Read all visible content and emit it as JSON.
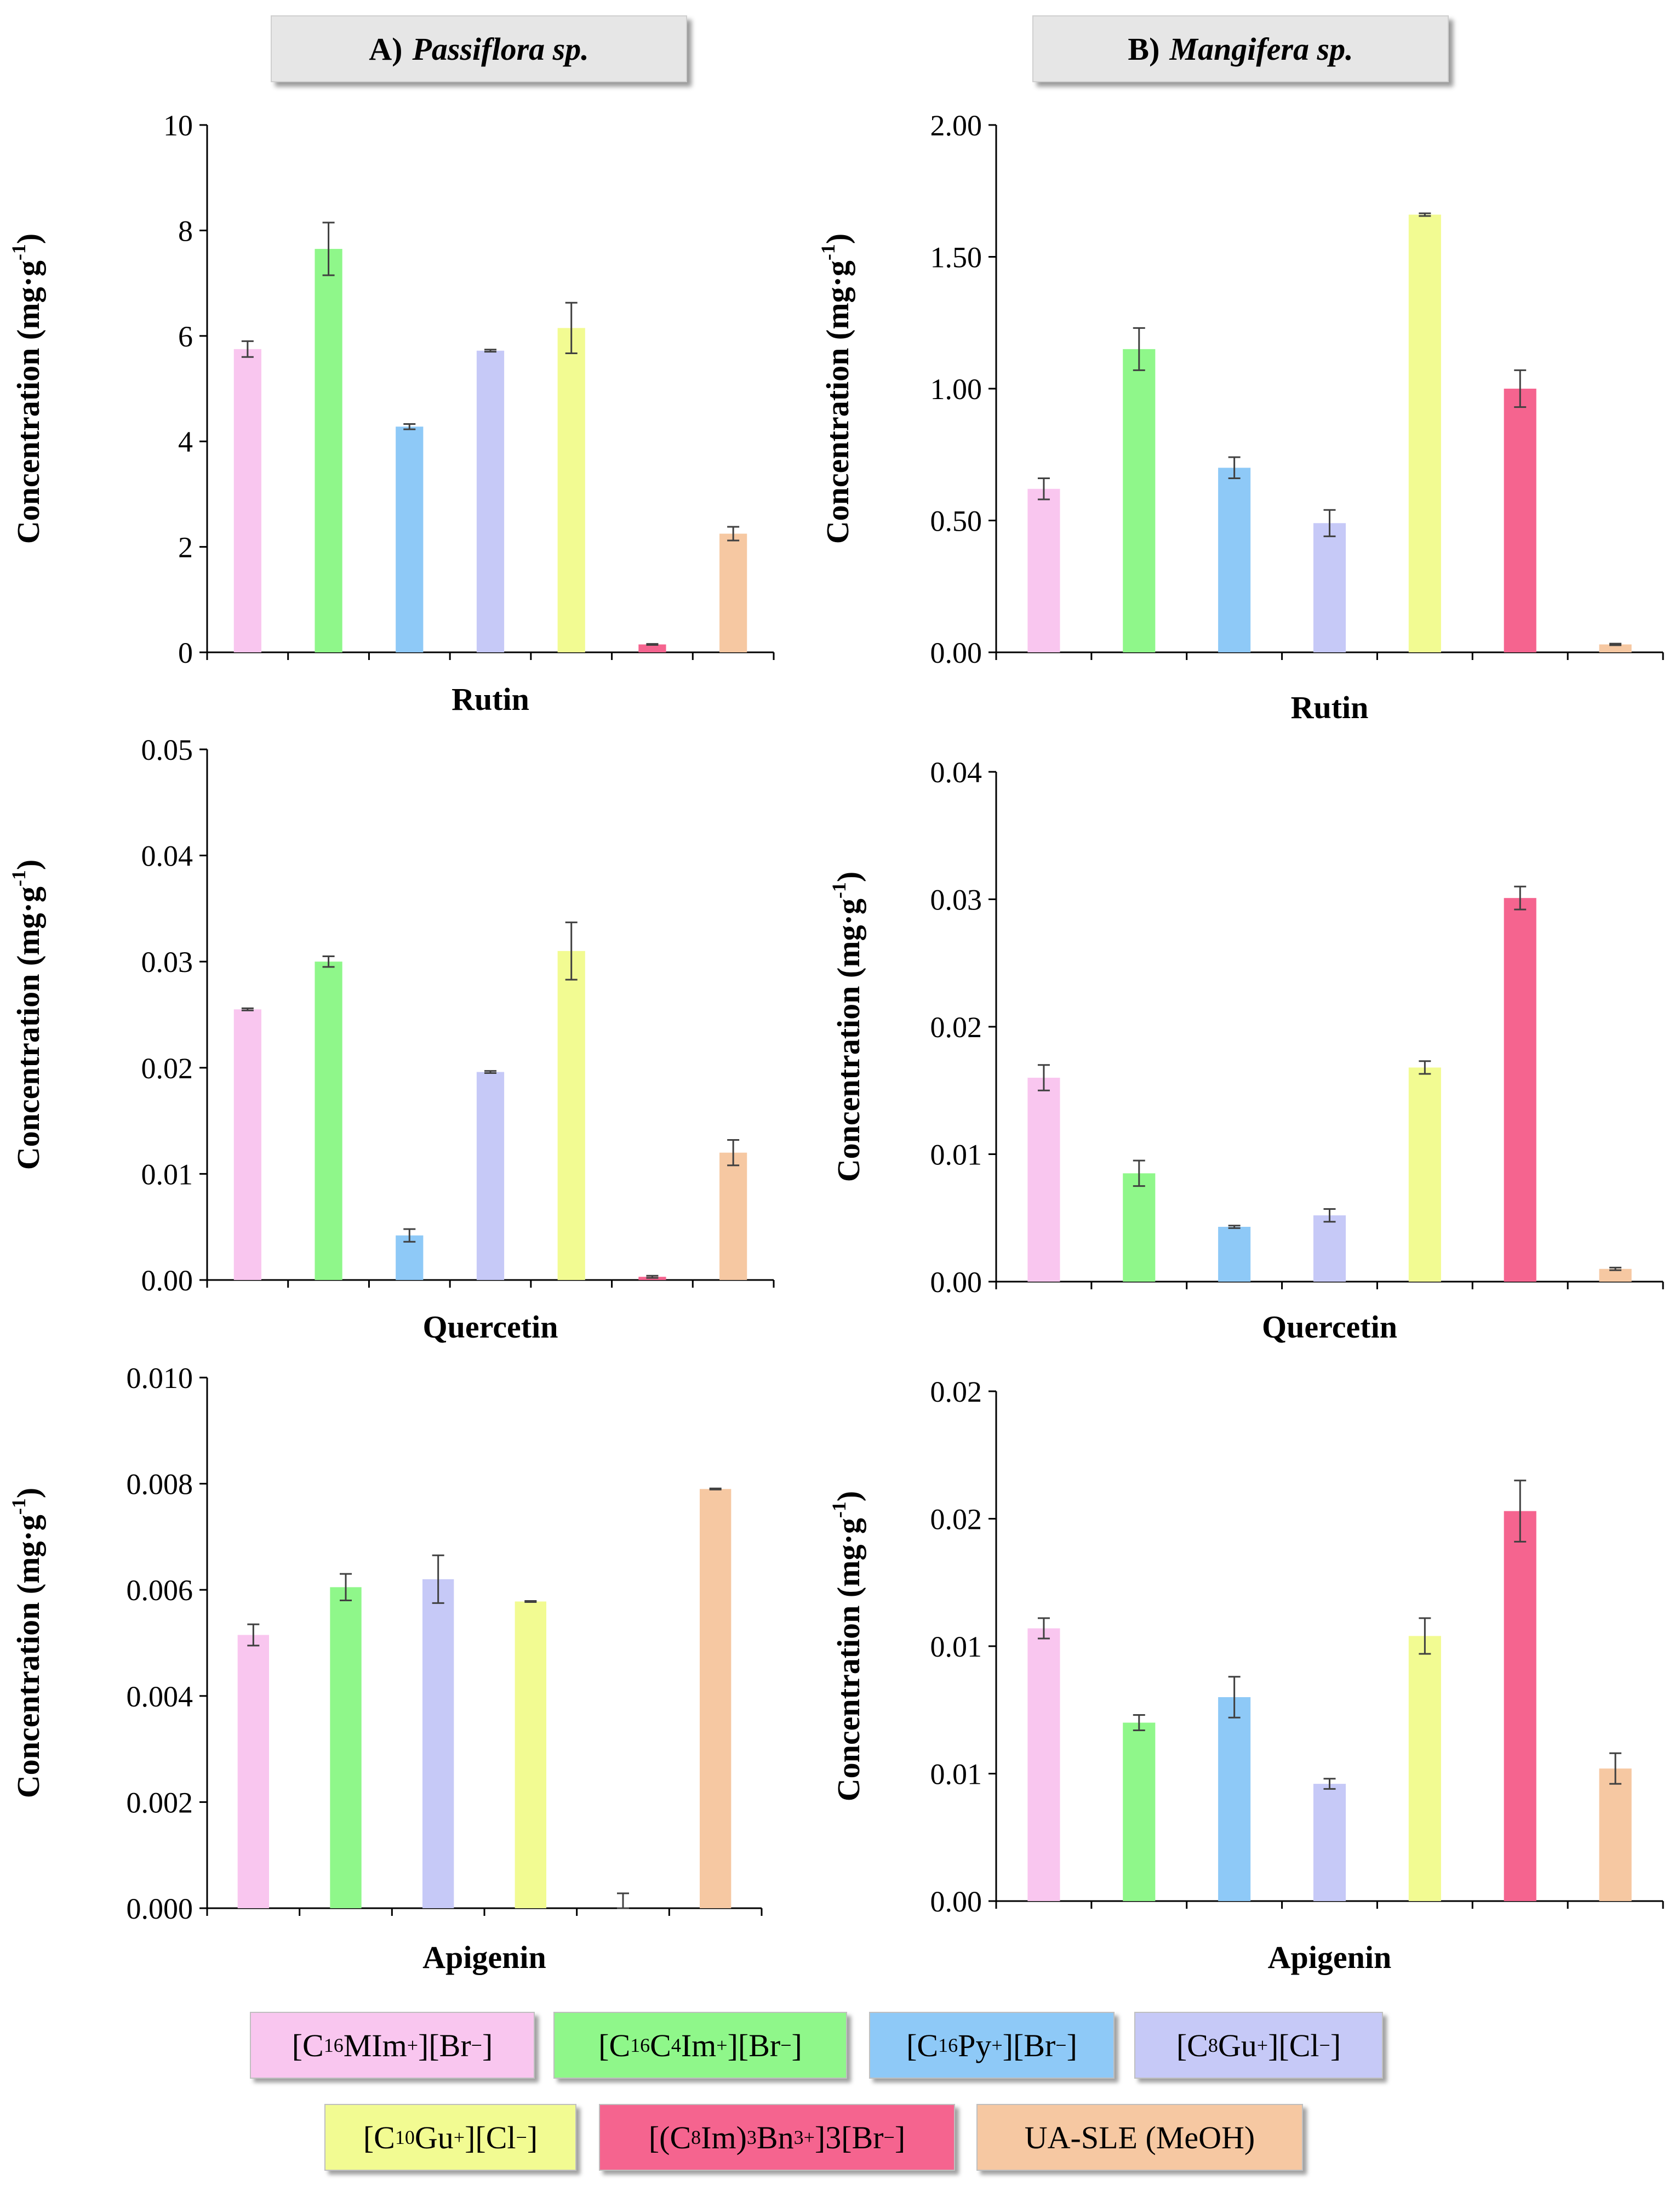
{
  "headers": {
    "a": {
      "prefix": "A)",
      "species": "Passiflora sp."
    },
    "b": {
      "prefix": "B)",
      "species": "Mangifera sp."
    }
  },
  "colors": [
    "#f9c6ef",
    "#8ff78a",
    "#8ec9f7",
    "#c6c9f7",
    "#f2fb92",
    "#f5648f",
    "#f6c8a2"
  ],
  "error_bar_color": "#404040",
  "legend": [
    {
      "label": "[C16MIm+][Br−]",
      "parts": [
        [
          "[C",
          ""
        ],
        [
          "16",
          "sub"
        ],
        [
          "MIm",
          ""
        ],
        [
          "+",
          "sup"
        ],
        [
          "][Br",
          ""
        ],
        [
          "−",
          "sup"
        ],
        [
          "]",
          ""
        ]
      ]
    },
    {
      "label": "[C16C4Im+][Br−]",
      "parts": [
        [
          "[C",
          ""
        ],
        [
          "16",
          "sub"
        ],
        [
          "C",
          ""
        ],
        [
          "4",
          "sub"
        ],
        [
          "Im",
          ""
        ],
        [
          "+",
          "sup"
        ],
        [
          "][Br",
          ""
        ],
        [
          "−",
          "sup"
        ],
        [
          "]",
          ""
        ]
      ]
    },
    {
      "label": "[C16Py+][Br−]",
      "parts": [
        [
          "[C",
          ""
        ],
        [
          "16",
          "sub"
        ],
        [
          "Py",
          ""
        ],
        [
          "+",
          "sup"
        ],
        [
          "][Br",
          ""
        ],
        [
          "−",
          "sup"
        ],
        [
          "]",
          ""
        ]
      ]
    },
    {
      "label": "[C8Gu+][Cl−]",
      "parts": [
        [
          "[C",
          ""
        ],
        [
          "8",
          "sub"
        ],
        [
          "Gu",
          ""
        ],
        [
          "+",
          "sup"
        ],
        [
          "][Cl",
          ""
        ],
        [
          "−",
          "sup"
        ],
        [
          "]",
          ""
        ]
      ]
    },
    {
      "label": "[C10Gu+][Cl−]",
      "parts": [
        [
          "[C",
          ""
        ],
        [
          "10",
          "sub"
        ],
        [
          "Gu",
          ""
        ],
        [
          "+",
          "sup"
        ],
        [
          "][Cl",
          ""
        ],
        [
          "−",
          "sup"
        ],
        [
          "]",
          ""
        ]
      ]
    },
    {
      "label": "[(C8Im)3Bn3+]3[Br−]",
      "parts": [
        [
          "[(C",
          ""
        ],
        [
          "8",
          "sub"
        ],
        [
          "Im)",
          ""
        ],
        [
          "3",
          "sub"
        ],
        [
          "Bn",
          ""
        ],
        [
          "3+",
          "sup"
        ],
        [
          "]3[Br",
          ""
        ],
        [
          "−",
          "sup"
        ],
        [
          "]",
          ""
        ]
      ]
    },
    {
      "label": "UA-SLE (MeOH)",
      "parts": [
        [
          "UA-SLE (MeOH)",
          ""
        ]
      ]
    }
  ],
  "chart_data": [
    {
      "id": "A-rutin",
      "type": "bar",
      "xlabel": "Rutin",
      "ylabel": "Concentration (mg·g-1)",
      "ylim": [
        0,
        10
      ],
      "ticks": [
        0,
        2,
        4,
        6,
        8,
        10
      ],
      "tick_labels": [
        "0",
        "2",
        "4",
        "6",
        "8",
        "10"
      ],
      "series": [
        {
          "name": "[C16MIm+][Br−]",
          "value": 5.75,
          "error": 0.15
        },
        {
          "name": "[C16C4Im+][Br−]",
          "value": 7.65,
          "error": 0.5
        },
        {
          "name": "[C16Py+][Br−]",
          "value": 4.28,
          "error": 0.05
        },
        {
          "name": "[C8Gu+][Cl−]",
          "value": 5.72,
          "error": 0.02
        },
        {
          "name": "[C10Gu+][Cl−]",
          "value": 6.15,
          "error": 0.48
        },
        {
          "name": "[(C8Im)3Bn3+]3[Br−]",
          "value": 0.15,
          "error": 0.01
        },
        {
          "name": "UA-SLE (MeOH)",
          "value": 2.25,
          "error": 0.13
        }
      ]
    },
    {
      "id": "B-rutin",
      "type": "bar",
      "xlabel": "Rutin",
      "ylabel": "Concentration (mg·g-1)",
      "ylim": [
        0,
        2
      ],
      "ticks": [
        0,
        0.5,
        1,
        1.5,
        2
      ],
      "tick_labels": [
        "0.00",
        "0.50",
        "1.00",
        "1.50",
        "2.00"
      ],
      "series": [
        {
          "name": "[C16MIm+][Br−]",
          "value": 0.62,
          "error": 0.04
        },
        {
          "name": "[C16C4Im+][Br−]",
          "value": 1.15,
          "error": 0.08
        },
        {
          "name": "[C16Py+][Br−]",
          "value": 0.7,
          "error": 0.04
        },
        {
          "name": "[C8Gu+][Cl−]",
          "value": 0.49,
          "error": 0.05
        },
        {
          "name": "[C10Gu+][Cl−]",
          "value": 1.66,
          "error": 0.005
        },
        {
          "name": "[(C8Im)3Bn3+]3[Br−]",
          "value": 1.0,
          "error": 0.07
        },
        {
          "name": "UA-SLE (MeOH)",
          "value": 0.03,
          "error": 0.003
        }
      ]
    },
    {
      "id": "A-quercetin",
      "type": "bar",
      "xlabel": "Quercetin",
      "ylabel": "Concentration (mg·g-1)",
      "ylim": [
        0,
        0.05
      ],
      "ticks": [
        0,
        0.01,
        0.02,
        0.03,
        0.04,
        0.05
      ],
      "tick_labels": [
        "0.00",
        "0.01",
        "0.02",
        "0.03",
        "0.04",
        "0.05"
      ],
      "series": [
        {
          "name": "[C16MIm+][Br−]",
          "value": 0.0255,
          "error": 0.0001
        },
        {
          "name": "[C16C4Im+][Br−]",
          "value": 0.03,
          "error": 0.0005
        },
        {
          "name": "[C16Py+][Br−]",
          "value": 0.0042,
          "error": 0.0006
        },
        {
          "name": "[C8Gu+][Cl−]",
          "value": 0.0196,
          "error": 0.0001
        },
        {
          "name": "[C10Gu+][Cl−]",
          "value": 0.031,
          "error": 0.0027
        },
        {
          "name": "[(C8Im)3Bn3+]3[Br−]",
          "value": 0.0003,
          "error": 0.0001
        },
        {
          "name": "UA-SLE (MeOH)",
          "value": 0.012,
          "error": 0.0012
        }
      ]
    },
    {
      "id": "B-quercetin",
      "type": "bar",
      "xlabel": "Quercetin",
      "ylabel": "Concentration (mg·g-1)",
      "ylim": [
        0,
        0.04
      ],
      "ticks": [
        0,
        0.01,
        0.02,
        0.03,
        0.04
      ],
      "tick_labels": [
        "0.00",
        "0.01",
        "0.02",
        "0.03",
        "0.04"
      ],
      "series": [
        {
          "name": "[C16MIm+][Br−]",
          "value": 0.016,
          "error": 0.001
        },
        {
          "name": "[C16C4Im+][Br−]",
          "value": 0.0085,
          "error": 0.001
        },
        {
          "name": "[C16Py+][Br−]",
          "value": 0.0043,
          "error": 0.0001
        },
        {
          "name": "[C8Gu+][Cl−]",
          "value": 0.0052,
          "error": 0.0005
        },
        {
          "name": "[C10Gu+][Cl−]",
          "value": 0.0168,
          "error": 0.0005
        },
        {
          "name": "[(C8Im)3Bn3+]3[Br−]",
          "value": 0.0301,
          "error": 0.0009
        },
        {
          "name": "UA-SLE (MeOH)",
          "value": 0.001,
          "error": 0.0001
        }
      ]
    },
    {
      "id": "A-apigenin",
      "type": "bar",
      "xlabel": "Apigenin",
      "ylabel": "Concentration (mg·g-1)",
      "ylim": [
        0,
        0.01
      ],
      "ticks": [
        0,
        0.002,
        0.004,
        0.006,
        0.008,
        0.01
      ],
      "tick_labels": [
        "0.000",
        "0.002",
        "0.004",
        "0.006",
        "0.008",
        "0.010"
      ],
      "series": [
        {
          "name": "[C16MIm+][Br−]",
          "value": 0.00515,
          "error": 0.0002
        },
        {
          "name": "[C16C4Im+][Br−]",
          "value": 0.00605,
          "error": 0.00025
        },
        {
          "name": "[C8Gu+][Cl−]",
          "value": 0.0062,
          "error": 0.00045
        },
        {
          "name": "[C10Gu+][Cl−]",
          "value": 0.00578,
          "error": 1e-05
        },
        {
          "name": "[(C8Im)3Bn3+]3[Br−]",
          "value": 0.0,
          "error": 0.00028
        },
        {
          "name": "UA-SLE (MeOH)",
          "value": 0.0079,
          "error": 1e-05
        }
      ]
    },
    {
      "id": "B-apigenin",
      "type": "bar",
      "xlabel": "Apigenin",
      "ylabel": "Concentration (mg·g-1)",
      "ylim": [
        0,
        0.02
      ],
      "ticks": [
        0,
        0.005,
        0.01,
        0.015,
        0.02
      ],
      "tick_labels": [
        "0.00",
        "0.01",
        "0.01",
        "0.02",
        "0.02"
      ],
      "series": [
        {
          "name": "[C16MIm+][Br−]",
          "value": 0.0107,
          "error": 0.0004
        },
        {
          "name": "[C16C4Im+][Br−]",
          "value": 0.007,
          "error": 0.0003
        },
        {
          "name": "[C16Py+][Br−]",
          "value": 0.008,
          "error": 0.0008
        },
        {
          "name": "[C8Gu+][Cl−]",
          "value": 0.0046,
          "error": 0.0002
        },
        {
          "name": "[C10Gu+][Cl−]",
          "value": 0.0104,
          "error": 0.0007
        },
        {
          "name": "[(C8Im)3Bn3+]3[Br−]",
          "value": 0.0153,
          "error": 0.0012
        },
        {
          "name": "UA-SLE (MeOH)",
          "value": 0.0052,
          "error": 0.0006
        }
      ]
    }
  ]
}
